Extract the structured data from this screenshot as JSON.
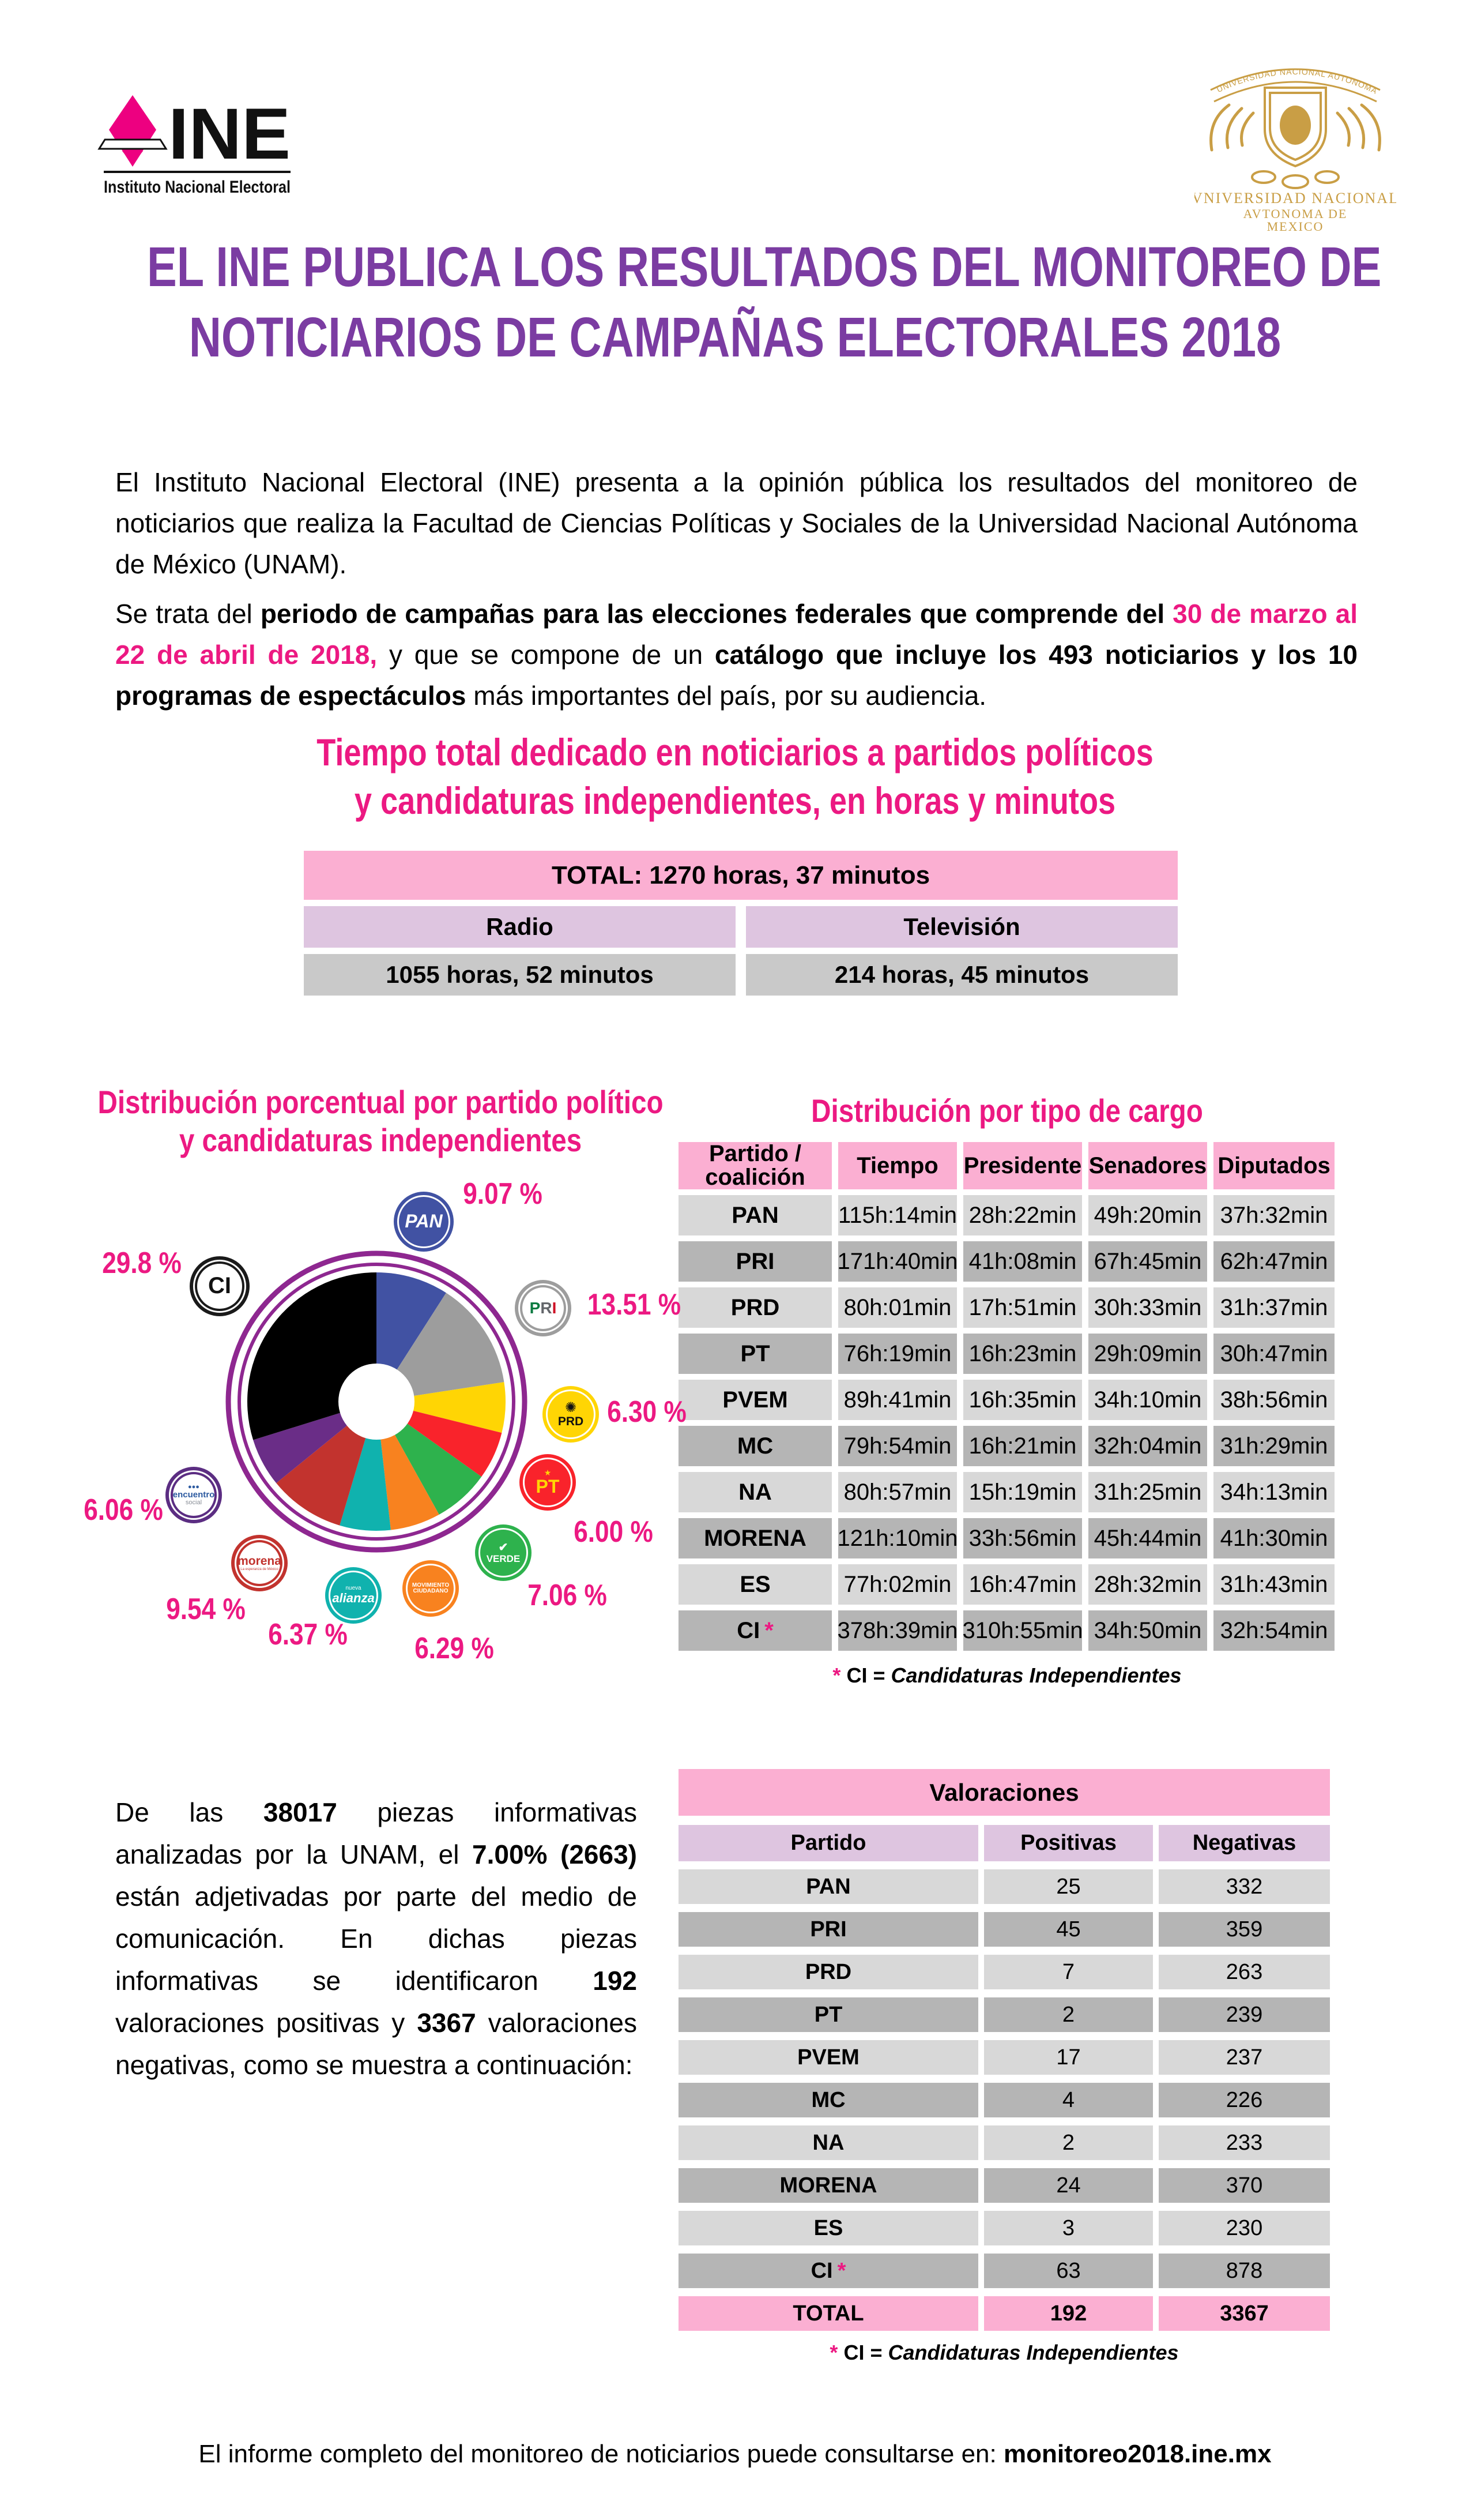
{
  "header": {
    "ine": {
      "wordmark": "INE",
      "subtitle": "Instituto Nacional Electoral"
    },
    "unam": {
      "ribbon": "UNIVERSIDAD NACIONAL AUTONOMA D MEXICO",
      "line1": "VNIVERSIDAD NACIONAL",
      "line2": "AVTONOMA DE",
      "line3": "MEXICO"
    }
  },
  "title": {
    "line1": "EL INE PUBLICA LOS RESULTADOS DEL MONITOREO DE",
    "line2": "NOTICIARIOS DE CAMPAÑAS ELECTORALES 2018"
  },
  "intro": {
    "segments": [
      {
        "t": "El Instituto Nacional Electoral (INE) presenta a la opinión pública los resultados del monitoreo de noticiarios que realiza la Facultad de Ciencias Políticas y Sociales de la Universidad Nacional Autónoma de México (UNAM)."
      }
    ]
  },
  "campaign": {
    "segments": [
      {
        "t": "Se trata del "
      },
      {
        "t": "periodo de campañas para las elecciones federales que comprende del ",
        "b": true
      },
      {
        "t": "30 de marzo al 22 de abril de 2018,",
        "b": true,
        "pink": true
      },
      {
        "t": " y que se compone de un "
      },
      {
        "t": "catálogo que incluye los 493 noticiarios y los 10 programas de espectáculos",
        "b": true
      },
      {
        "t": " más importantes del país, por su audiencia."
      }
    ]
  },
  "time_heading": {
    "line1": "Tiempo total dedicado en noticiarios a partidos políticos",
    "line2": "y candidaturas independientes, en horas y minutos"
  },
  "total_table": {
    "total": "TOTAL:  1270 horas, 37 minutos",
    "radio_label": "Radio",
    "tv_label": "Televisión",
    "radio_value": "1055 horas, 52 minutos",
    "tv_value": "214 horas, 45 minutos"
  },
  "left_chart": {
    "title_line1": "Distribución porcentual por partido político",
    "title_line2": "y candidaturas independientes"
  },
  "chart_data": {
    "type": "pie",
    "title": "Distribución porcentual por partido político y candidaturas independientes",
    "unit": "percent",
    "start_angle_deg": -90,
    "direction": "clockwise",
    "ring_color": "#8E2790",
    "hole_color": "#ffffff",
    "slices": [
      {
        "party": "PAN",
        "value": 9.07,
        "label": "9.07 %",
        "color": "#4152A3",
        "badge": {
          "size": 104,
          "rim": "#4152A3",
          "core": null,
          "lines": [
            {
              "t": "PAN",
              "c": "#ffffff",
              "s": 32,
              "b": true,
              "i": true
            }
          ]
        }
      },
      {
        "party": "PRI",
        "value": 13.51,
        "label": "13.51 %",
        "color": "#9D9D9D",
        "badge": {
          "size": 98,
          "rim": "#9D9D9D",
          "core": "#ffffff",
          "lines": [
            {
              "t": "PRI",
              "tricolor": true,
              "s": 28,
              "b": true
            }
          ]
        }
      },
      {
        "party": "PRD",
        "value": 6.3,
        "label": "6.30 %",
        "color": "#FFD504",
        "badge": {
          "size": 98,
          "rim": "#FFD504",
          "core": null,
          "lines": [
            {
              "t": "✺",
              "c": "#111111",
              "s": 24
            },
            {
              "t": "PRD",
              "c": "#111111",
              "s": 21,
              "b": true
            }
          ]
        }
      },
      {
        "party": "PT",
        "value": 6.0,
        "label": "6.00 %",
        "color": "#F9232B",
        "badge": {
          "size": 98,
          "rim": "#F9232B",
          "core": null,
          "lines": [
            {
              "t": "★",
              "c": "#FFD504",
              "s": 14
            },
            {
              "t": "PT",
              "c": "#FFD504",
              "s": 32,
              "b": true
            }
          ]
        }
      },
      {
        "party": "PVEM",
        "value": 7.06,
        "label": "7.06 %",
        "color": "#2EB24D",
        "badge": {
          "size": 98,
          "rim": "#2EB24D",
          "core": null,
          "lines": [
            {
              "t": "✔",
              "c": "#ffffff",
              "s": 20,
              "b": true
            },
            {
              "t": "VERDE",
              "c": "#ffffff",
              "s": 17,
              "b": true
            }
          ]
        }
      },
      {
        "party": "MC",
        "value": 6.29,
        "label": "6.29 %",
        "color": "#F8821F",
        "badge": {
          "size": 98,
          "rim": "#F8821F",
          "core": null,
          "lines": [
            {
              "t": "MOVIMIENTO",
              "c": "#ffffff",
              "s": 10,
              "b": true
            },
            {
              "t": "CIUDADANO",
              "c": "#ffffff",
              "s": 10,
              "b": true
            }
          ]
        }
      },
      {
        "party": "NA",
        "value": 6.37,
        "label": "6.37 %",
        "color": "#10B2AE",
        "badge": {
          "size": 98,
          "rim": "#10B2AE",
          "core": null,
          "lines": [
            {
              "t": "nueva",
              "c": "#ffffff",
              "s": 10
            },
            {
              "t": "alianza",
              "c": "#ffffff",
              "s": 22,
              "b": true,
              "i": true
            }
          ]
        }
      },
      {
        "party": "MORENA",
        "value": 9.54,
        "label": "9.54 %",
        "color": "#C2332E",
        "badge": {
          "size": 98,
          "rim": "#C2332E",
          "core": "#ffffff",
          "lines": [
            {
              "t": "morena",
              "c": "#C2332E",
              "s": 21,
              "b": true
            },
            {
              "t": "La esperanza de México",
              "c": "#C2332E",
              "s": 6
            }
          ]
        }
      },
      {
        "party": "ES",
        "value": 6.06,
        "label": "6.06 %",
        "color": "#6A2D87",
        "badge": {
          "size": 98,
          "rim": "#5B2D82",
          "core": "#ffffff",
          "lines": [
            {
              "t": "●●●",
              "c": "#2C5AA0",
              "s": 11
            },
            {
              "t": "encuentro",
              "c": "#2C5AA0",
              "s": 15,
              "b": true
            },
            {
              "t": "social",
              "c": "#8A8F98",
              "s": 11
            }
          ]
        }
      },
      {
        "party": "CI",
        "value": 29.8,
        "label": "29.8 %",
        "color": "#000000",
        "badge": {
          "size": 104,
          "rim": "#1A1A1A",
          "core": "#ffffff",
          "lines": [
            {
              "t": "CI",
              "c": "#111111",
              "s": 40,
              "b": true
            }
          ]
        }
      }
    ]
  },
  "cargo_table": {
    "title": "Distribución por tipo de cargo",
    "headers": [
      "Partido /\ncoalición",
      "Tiempo",
      "Presidente",
      "Senadores",
      "Diputados"
    ],
    "rows": [
      [
        "PAN",
        "115h:14min",
        "28h:22min",
        "49h:20min",
        "37h:32min"
      ],
      [
        "PRI",
        "171h:40min",
        "41h:08min",
        "67h:45min",
        "62h:47min"
      ],
      [
        "PRD",
        "80h:01min",
        "17h:51min",
        "30h:33min",
        "31h:37min"
      ],
      [
        "PT",
        "76h:19min",
        "16h:23min",
        "29h:09min",
        "30h:47min"
      ],
      [
        "PVEM",
        "89h:41min",
        "16h:35min",
        "34h:10min",
        "38h:56min"
      ],
      [
        "MC",
        "79h:54min",
        "16h:21min",
        "32h:04min",
        "31h:29min"
      ],
      [
        "NA",
        "80h:57min",
        "15h:19min",
        "31h:25min",
        "34h:13min"
      ],
      [
        "MORENA",
        "121h:10min",
        "33h:56min",
        "45h:44min",
        "41h:30min"
      ],
      [
        "ES",
        "77h:02min",
        "16h:47min",
        "28h:32min",
        "31h:43min"
      ],
      [
        "CI *",
        "378h:39min",
        "310h:55min",
        "34h:50min",
        "32h:54min"
      ]
    ],
    "footnote_star": "*",
    "footnote_prefix": "CI = ",
    "footnote_italic": "Candidaturas Independientes"
  },
  "analysis": {
    "segments": [
      {
        "t": "De las "
      },
      {
        "t": "38017",
        "b": true
      },
      {
        "t": " piezas informativas analizadas por la UNAM, el "
      },
      {
        "t": "7.00% (2663)",
        "b": true
      },
      {
        "t": " están adjetivadas por parte del medio de comunicación. En dichas piezas informativas se identificaron "
      },
      {
        "t": "192",
        "b": true
      },
      {
        "t": " valoraciones positivas y "
      },
      {
        "t": "3367",
        "b": true
      },
      {
        "t": " valoraciones negativas,  como se muestra a continuación:"
      }
    ]
  },
  "valoraciones": {
    "title": "Valoraciones",
    "headers": [
      "Partido",
      "Positivas",
      "Negativas"
    ],
    "rows": [
      [
        "PAN",
        "25",
        "332"
      ],
      [
        "PRI",
        "45",
        "359"
      ],
      [
        "PRD",
        "7",
        "263"
      ],
      [
        "PT",
        "2",
        "239"
      ],
      [
        "PVEM",
        "17",
        "237"
      ],
      [
        "MC",
        "4",
        "226"
      ],
      [
        "NA",
        "2",
        "233"
      ],
      [
        "MORENA",
        "24",
        "370"
      ],
      [
        "ES",
        "3",
        "230"
      ],
      [
        "CI *",
        "63",
        "878"
      ]
    ],
    "total_row": [
      "TOTAL",
      "192",
      "3367"
    ],
    "footnote_star": "*",
    "footnote_prefix": "CI = ",
    "footnote_italic": "Candidaturas Independientes"
  },
  "footer": {
    "text": "El informe completo del monitoreo de noticiarios puede consultarse en: ",
    "link": "monitoreo2018.ine.mx"
  }
}
